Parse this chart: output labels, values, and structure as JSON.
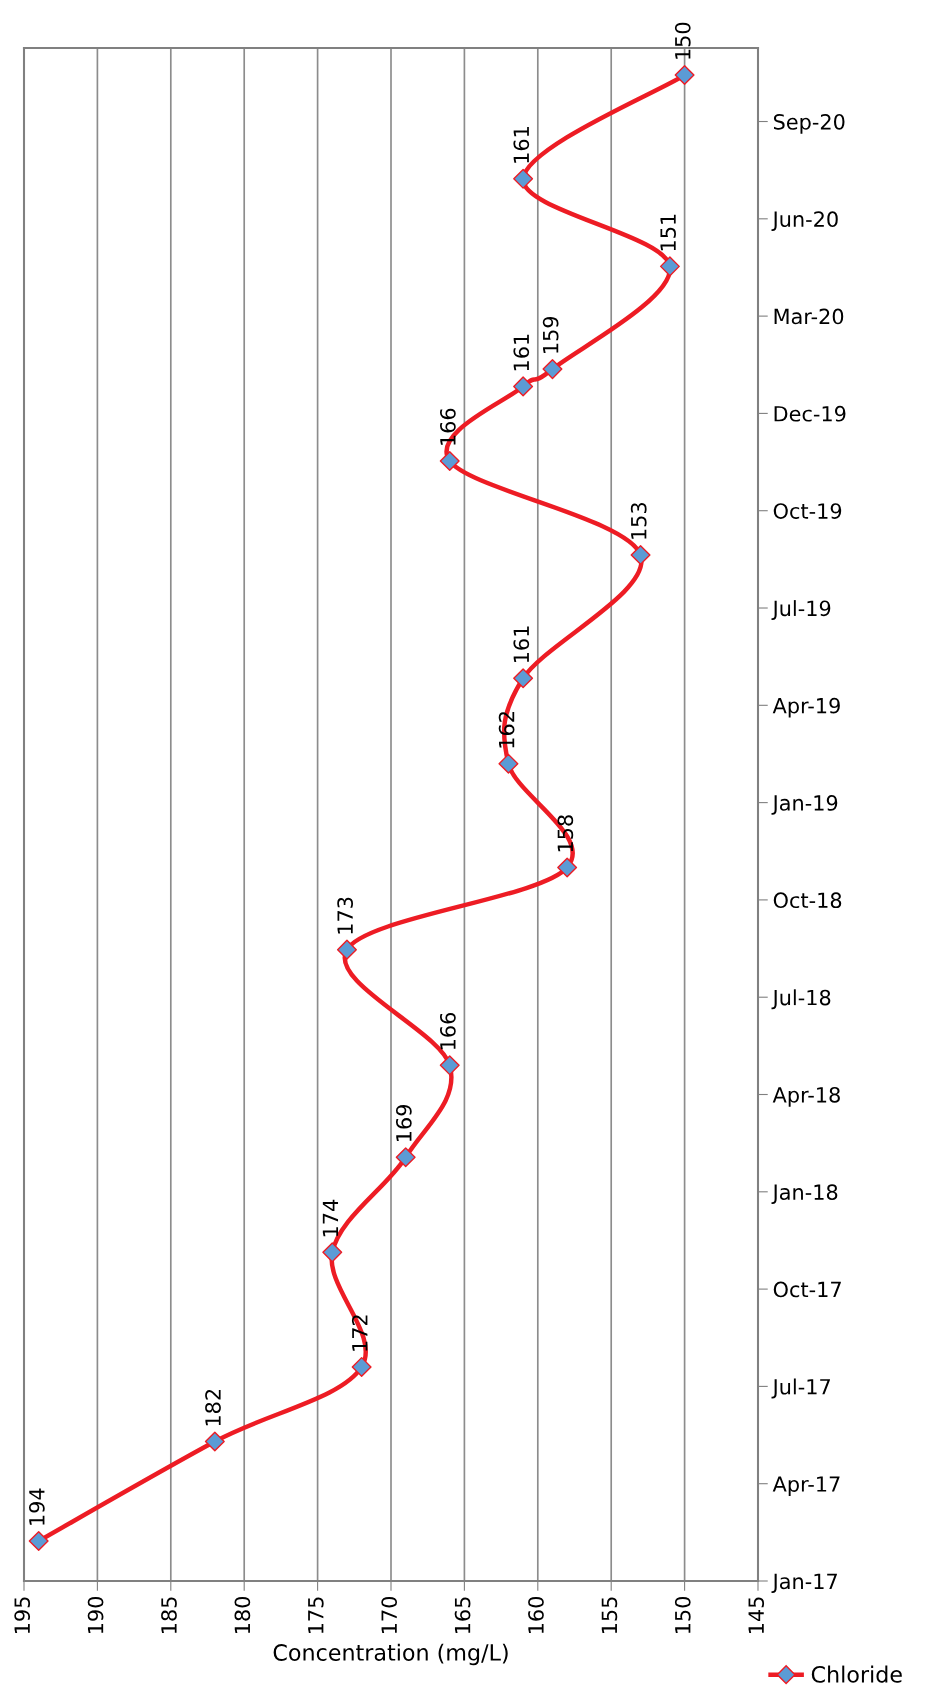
{
  "chart_data": {
    "type": "line",
    "orientation": "horizontal",
    "xlabel": "Concentration (mg/L)",
    "x": [
      "2017-02-21",
      "2017-05-24",
      "2017-08-01",
      "2017-11-15",
      "2018-02-11",
      "2018-05-07",
      "2018-08-22",
      "2018-11-06",
      "2019-02-10",
      "2019-04-30",
      "2019-08-22",
      "2019-11-17",
      "2020-01-25",
      "2020-02-10",
      "2020-05-15",
      "2020-08-04",
      "2020-11-08"
    ],
    "series": [
      {
        "name": "Chloride",
        "color": "#ed1c24",
        "values": [
          194,
          182,
          172,
          174,
          169,
          166,
          173,
          158,
          162,
          161,
          153,
          166,
          161,
          159,
          151,
          161,
          150
        ]
      }
    ],
    "xlim": [
      195,
      145
    ],
    "xticks": [
      195,
      190,
      185,
      180,
      175,
      170,
      165,
      160,
      155,
      150,
      145
    ],
    "ylim": [
      "2017-01-15",
      "2020-12-03"
    ],
    "yticks": [
      {
        "value": "2017-01-15",
        "label": "Jan-17"
      },
      {
        "value": "2017-04-15",
        "label": "Apr-17"
      },
      {
        "value": "2017-07-14",
        "label": "Jul-17"
      },
      {
        "value": "2017-10-12",
        "label": "Oct-17"
      },
      {
        "value": "2018-01-10",
        "label": "Jan-18"
      },
      {
        "value": "2018-04-10",
        "label": "Apr-18"
      },
      {
        "value": "2018-07-09",
        "label": "Jul-18"
      },
      {
        "value": "2018-10-07",
        "label": "Oct-18"
      },
      {
        "value": "2019-01-05",
        "label": "Jan-19"
      },
      {
        "value": "2019-04-05",
        "label": "Apr-19"
      },
      {
        "value": "2019-07-04",
        "label": "Jul-19"
      },
      {
        "value": "2019-10-02",
        "label": "Oct-19"
      },
      {
        "value": "2019-12-31",
        "label": "Dec-19"
      },
      {
        "value": "2020-03-30",
        "label": "Mar-20"
      },
      {
        "value": "2020-06-28",
        "label": "Jun-20"
      },
      {
        "value": "2020-09-26",
        "label": "Sep-20"
      }
    ],
    "grid": "x",
    "legend": "bottom right",
    "marker": "diamond",
    "line_style": "solid",
    "data_labels": true
  }
}
